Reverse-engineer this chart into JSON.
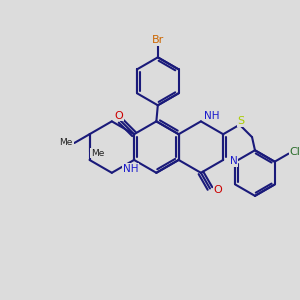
{
  "bg_color": "#dcdcdc",
  "bond_color": "#1a1a7a",
  "bond_lw": 1.5,
  "o_color": "#cc0000",
  "n_color": "#1a1acc",
  "s_color": "#aacc00",
  "cl_color": "#2a6e2a",
  "br_color": "#cc6600",
  "fs": 8.0,
  "xlim": [
    0,
    10
  ],
  "ylim": [
    0,
    10
  ],
  "figsize": [
    3.0,
    3.0
  ],
  "dpi": 100
}
